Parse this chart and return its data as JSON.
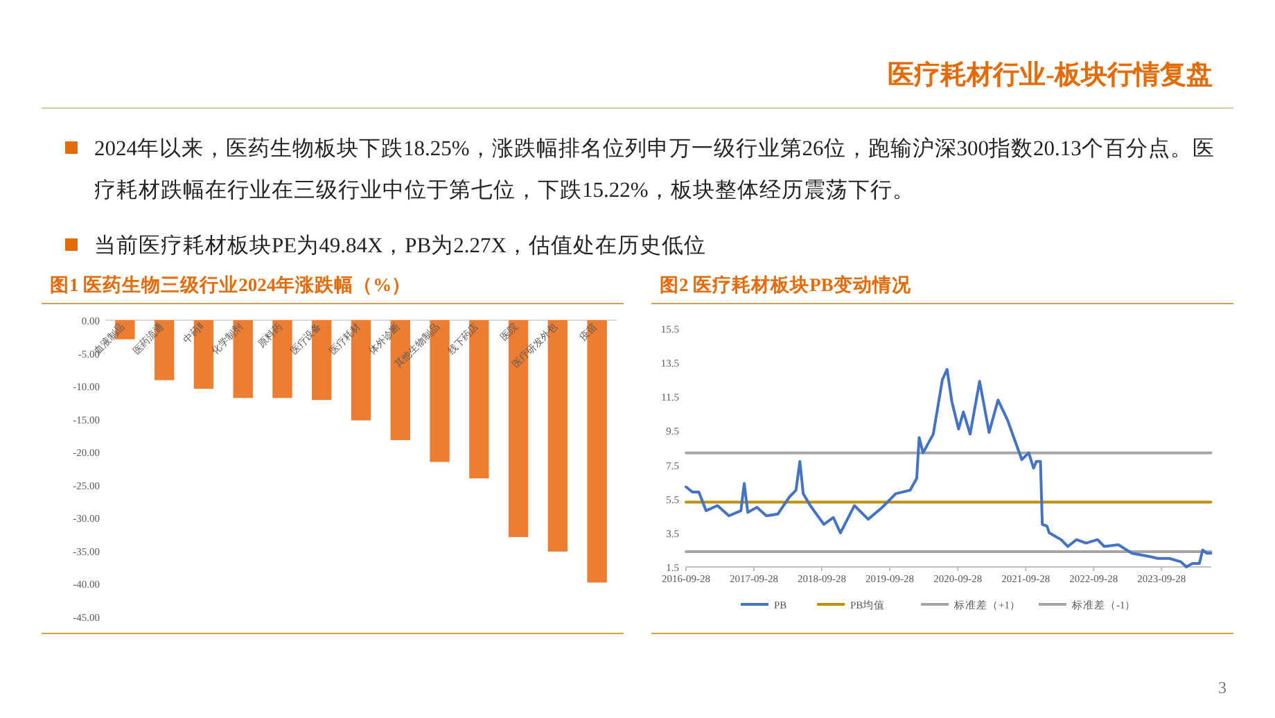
{
  "chart_data": [
    {
      "type": "other",
      "title": "医疗耗材行业-板块行情复盘",
      "annotations": [
        "2024年以来，医药生物板块下跌18.25%，涨跌幅排名位列申万一级行业第26位，跑输沪深300指数20.13个百分点。医疗耗材跌幅在行业在三级行业中位于第七位，下跌15.22%，板块整体经历震荡下行。",
        "当前医疗耗材板块PE为49.84X，PB为2.27X，估值处在历史低位",
        "3"
      ]
    },
    {
      "type": "bar",
      "title": "图1 医药生物三级行业2024年涨跌幅（%）",
      "categories": [
        "血液制品",
        "医药流通",
        "中药Ⅱ",
        "化学制剂",
        "原料药",
        "医疗设备",
        "医疗耗材",
        "体外诊断",
        "其他生物制品",
        "线下药店",
        "医院",
        "医疗研发外包",
        "疫苗"
      ],
      "series": [
        {
          "color": "#ed7d31",
          "values": [
            -2.9,
            -9.1,
            -10.4,
            -11.8,
            -11.8,
            -12.1,
            -15.2,
            -18.2,
            -21.5,
            -24.0,
            -32.9,
            -35.1,
            -39.8
          ]
        }
      ],
      "ylim": [
        -45,
        0
      ],
      "yticks": [
        {
          "value": 0,
          "label": "0.00"
        },
        {
          "value": -5,
          "label": "-5.00"
        },
        {
          "value": -10,
          "label": "-10.00"
        },
        {
          "value": -15,
          "label": "-15.00"
        },
        {
          "value": -20,
          "label": "-20.00"
        },
        {
          "value": -25,
          "label": "-25.00"
        },
        {
          "value": -30,
          "label": "-30.00"
        },
        {
          "value": -35,
          "label": "-35.00"
        },
        {
          "value": -40,
          "label": "-40.00"
        },
        {
          "value": -45,
          "label": "-45.00"
        }
      ],
      "grid": false
    },
    {
      "type": "line",
      "title": "图2 医疗耗材板块PB变动情况",
      "series": [
        {
          "name": "PB",
          "color": "#4472c4",
          "x": [
            "2016-09-28",
            "2016-11-01",
            "2016-12-06",
            "2017-01-14",
            "2017-03-16",
            "2017-05-17",
            "2017-07-20",
            "2017-08-07",
            "2017-08-26",
            "2017-10-14",
            "2017-12-04",
            "2018-02-03",
            "2018-04-06",
            "2018-05-12",
            "2018-06-02",
            "2018-06-20",
            "2018-07-28",
            "2018-10-09",
            "2018-11-29",
            "2019-01-06",
            "2019-03-22",
            "2019-06-04",
            "2019-08-19",
            "2019-10-30",
            "2020-01-15",
            "2020-02-20",
            "2020-03-04",
            "2020-03-25",
            "2020-05-19",
            "2020-07-07",
            "2020-08-01",
            "2020-08-27",
            "2020-10-02",
            "2020-10-28",
            "2020-12-03",
            "2021-01-23",
            "2021-03-15",
            "2021-05-02",
            "2021-06-23",
            "2021-07-29",
            "2021-09-07",
            "2021-10-14",
            "2021-11-09",
            "2021-11-24",
            "2021-12-16",
            "2021-12-26",
            "2022-01-20",
            "2022-02-01",
            "2022-04-06",
            "2022-05-12",
            "2022-06-28",
            "2022-08-18",
            "2022-10-19",
            "2022-11-24",
            "2023-02-08",
            "2023-04-22",
            "2023-07-30",
            "2023-09-08",
            "2023-11-09",
            "2024-01-10",
            "2024-02-08",
            "2024-03-12",
            "2024-04-18",
            "2024-05-06",
            "2024-05-28",
            "2024-06-19"
          ],
          "values": [
            6.2,
            5.9,
            5.9,
            4.8,
            5.1,
            4.5,
            4.8,
            6.4,
            4.7,
            5.0,
            4.5,
            4.6,
            5.6,
            6.0,
            7.7,
            5.8,
            5.1,
            4.0,
            4.4,
            3.5,
            5.1,
            4.3,
            5.0,
            5.8,
            6.0,
            6.7,
            9.1,
            8.2,
            9.3,
            12.5,
            13.1,
            11.2,
            9.6,
            10.6,
            9.3,
            12.4,
            9.4,
            11.3,
            10.1,
            9.0,
            7.8,
            8.2,
            7.3,
            7.7,
            7.7,
            4.0,
            3.9,
            3.5,
            3.1,
            2.7,
            3.1,
            2.9,
            3.1,
            2.7,
            2.8,
            2.3,
            2.1,
            2.0,
            2.0,
            1.8,
            1.5,
            1.7,
            1.7,
            2.5,
            2.3,
            2.3
          ]
        },
        {
          "name": "PB均值",
          "color": "#bf9000",
          "x": [
            "2016-09-28",
            "2024-06-19"
          ],
          "values": [
            5.3,
            5.3
          ]
        },
        {
          "name": "标准差（+1）",
          "color": "#a5a5a5",
          "x": [
            "2016-09-28",
            "2024-06-19"
          ],
          "values": [
            8.2,
            8.2
          ]
        },
        {
          "name": "标准差（-1）",
          "color": "#a5a5a5",
          "x": [
            "2016-09-28",
            "2024-06-19"
          ],
          "values": [
            2.4,
            2.4
          ]
        }
      ],
      "xlim": [
        "2016-09-28",
        "2024-06-21"
      ],
      "xticks": [
        "2016-09-28",
        "2017-09-28",
        "2018-09-28",
        "2019-09-28",
        "2020-09-28",
        "2021-09-28",
        "2022-09-28",
        "2023-09-28"
      ],
      "ylim": [
        1.5,
        15.5
      ],
      "yticks": [
        1.5,
        3.5,
        5.5,
        7.5,
        9.5,
        11.5,
        13.5,
        15.5
      ],
      "grid": false,
      "legend": "bottom"
    }
  ]
}
